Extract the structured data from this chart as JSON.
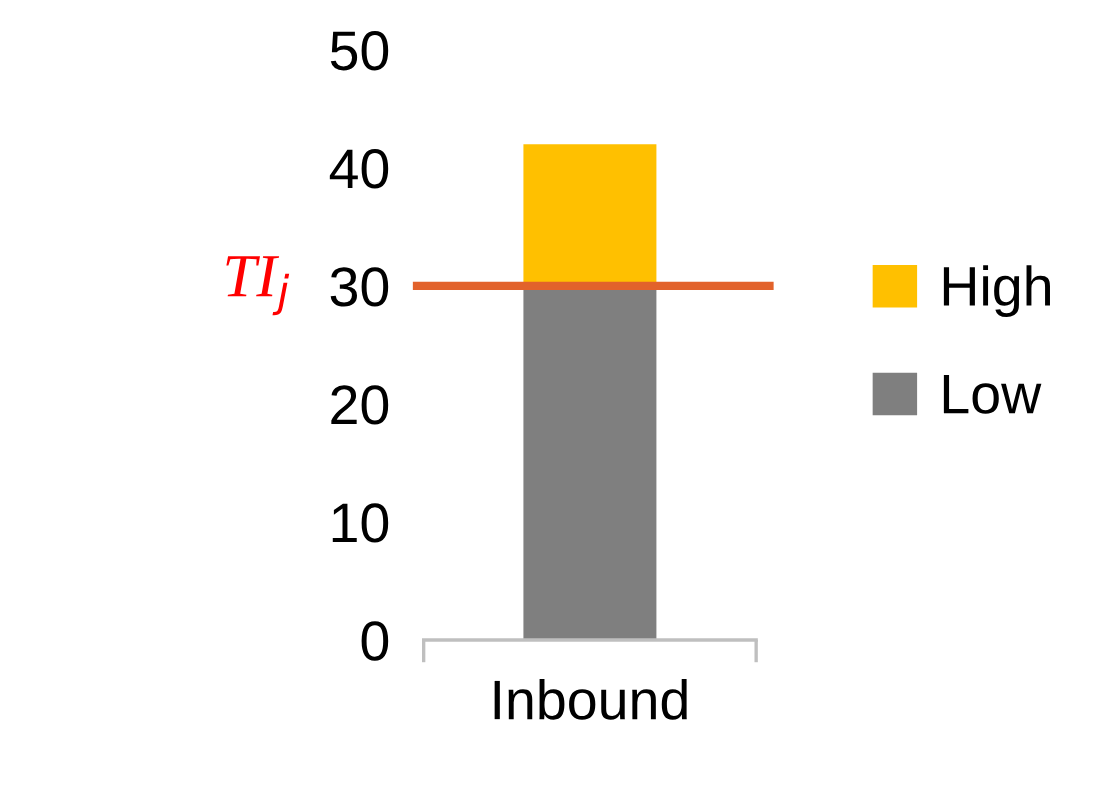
{
  "chart_data": {
    "type": "bar",
    "stacked": true,
    "categories": [
      "Inbound"
    ],
    "series": [
      {
        "name": "Low",
        "color": "#7f7f7f",
        "values": [
          30
        ]
      },
      {
        "name": "High",
        "color": "#ffc000",
        "values": [
          12
        ]
      }
    ],
    "ylim": [
      0,
      50
    ],
    "yticks": [
      0,
      10,
      20,
      30,
      40,
      50
    ],
    "grid": false,
    "legend": "right",
    "ref_lines": [
      {
        "axis": "y",
        "value": 30,
        "label": "TI$_{j}$",
        "color": "#e2622b",
        "line_style": "solid"
      }
    ]
  }
}
